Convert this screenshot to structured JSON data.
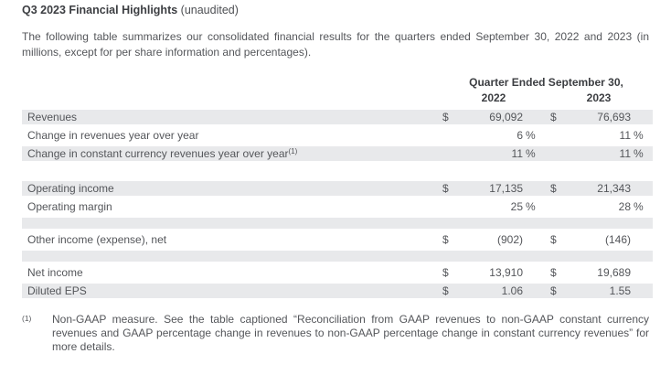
{
  "page": {
    "title_bold": "Q3 2023 Financial Highlights",
    "title_suffix": " (unaudited)",
    "intro": "The following table summarizes our consolidated financial results for the quarters ended September 30, 2022 and 2023 (in millions, except for per share information and percentages)."
  },
  "table": {
    "period_header": "Quarter Ended September 30,",
    "years": [
      "2022",
      "2023"
    ],
    "rows": [
      {
        "label": "Revenues",
        "label_sup": "",
        "cells": [
          {
            "sym": "$",
            "val": "69,092",
            "suffix": ""
          },
          {
            "sym": "$",
            "val": "76,693",
            "suffix": ""
          }
        ]
      },
      {
        "label": "Change in revenues year over year",
        "label_sup": "",
        "cells": [
          {
            "sym": "",
            "val": "6",
            "suffix": "%"
          },
          {
            "sym": "",
            "val": "11",
            "suffix": "%"
          }
        ]
      },
      {
        "label": "Change in constant currency revenues year over year",
        "label_sup": "(1)",
        "cells": [
          {
            "sym": "",
            "val": "11",
            "suffix": "%"
          },
          {
            "sym": "",
            "val": "11",
            "suffix": "%"
          }
        ]
      },
      {
        "label": "Operating income",
        "label_sup": "",
        "cells": [
          {
            "sym": "$",
            "val": "17,135",
            "suffix": ""
          },
          {
            "sym": "$",
            "val": "21,343",
            "suffix": ""
          }
        ]
      },
      {
        "label": "Operating margin",
        "label_sup": "",
        "cells": [
          {
            "sym": "",
            "val": "25",
            "suffix": "%"
          },
          {
            "sym": "",
            "val": "28",
            "suffix": "%"
          }
        ]
      },
      {
        "label": "Other income (expense), net",
        "label_sup": "",
        "cells": [
          {
            "sym": "$",
            "val": "(902)",
            "suffix": ""
          },
          {
            "sym": "$",
            "val": "(146)",
            "suffix": ""
          }
        ]
      },
      {
        "label": "Net income",
        "label_sup": "",
        "cells": [
          {
            "sym": "$",
            "val": "13,910",
            "suffix": ""
          },
          {
            "sym": "$",
            "val": "19,689",
            "suffix": ""
          }
        ]
      },
      {
        "label": "Diluted EPS",
        "label_sup": "",
        "cells": [
          {
            "sym": "$",
            "val": "1.06",
            "suffix": ""
          },
          {
            "sym": "$",
            "val": "1.55",
            "suffix": ""
          }
        ]
      }
    ]
  },
  "footnote": {
    "marker": "(1)",
    "text": "Non-GAAP measure. See the table captioned “Reconciliation from GAAP revenues to non-GAAP constant currency revenues and GAAP percentage change in revenues to non-GAAP percentage change in constant currency revenues” for more details."
  },
  "colors": {
    "row_shading": "#e8e9eb",
    "body_text": "#54565a",
    "bold_text": "#3c3e42"
  }
}
